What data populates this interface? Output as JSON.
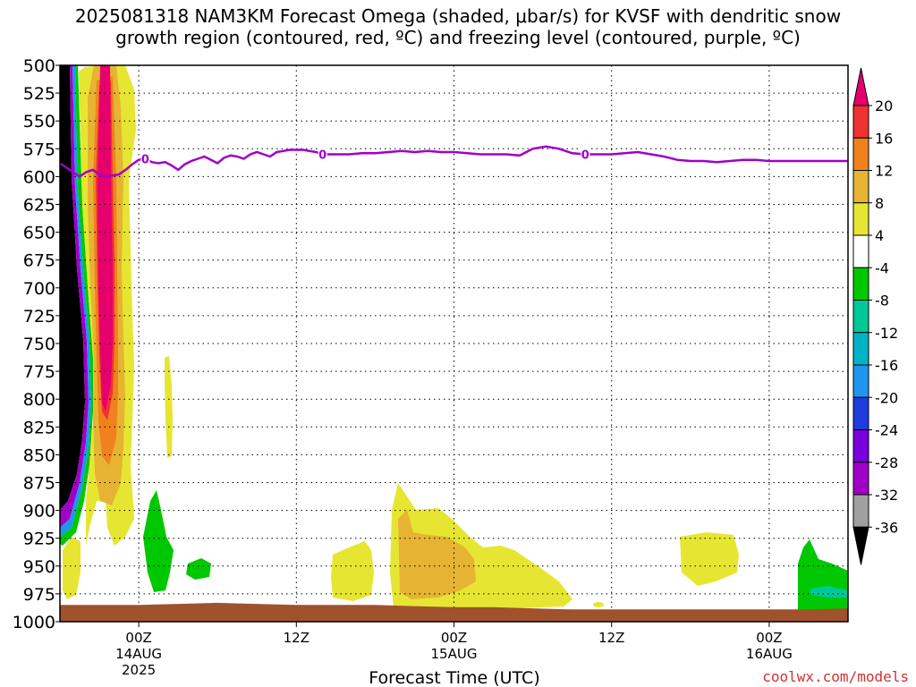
{
  "chart_data": {
    "type": "heatmap",
    "title_line1": "2025081318 NAM3KM Forecast Omega (shaded, μbar/s) for KVSF with dendritic snow",
    "title_line2": "growth region (contoured, red, ºC) and freezing level (contoured, purple, ºC)",
    "xlabel": "Forecast Time (UTC)",
    "ylabel": "",
    "x_ticks": [
      {
        "label": "00Z",
        "sub1": "14AUG",
        "sub2": "2025",
        "hour": 6
      },
      {
        "label": "12Z",
        "sub1": "",
        "sub2": "",
        "hour": 18
      },
      {
        "label": "00Z",
        "sub1": "15AUG",
        "sub2": "",
        "hour": 30
      },
      {
        "label": "12Z",
        "sub1": "",
        "sub2": "",
        "hour": 42
      },
      {
        "label": "00Z",
        "sub1": "16AUG",
        "sub2": "",
        "hour": 54
      }
    ],
    "xlim_hours": [
      0,
      60
    ],
    "y_ticks": [
      "500",
      "525",
      "550",
      "575",
      "600",
      "625",
      "650",
      "675",
      "700",
      "725",
      "750",
      "775",
      "800",
      "825",
      "850",
      "875",
      "900",
      "925",
      "950",
      "975",
      "1000"
    ],
    "ylim_hPa": [
      500,
      1000
    ],
    "grid": true,
    "colorbar": {
      "labels": [
        "20",
        "16",
        "12",
        "8",
        "4",
        "-4",
        "-8",
        "-12",
        "-16",
        "-20",
        "-24",
        "-28",
        "-32",
        "-36"
      ],
      "colors": [
        "#e6006e",
        "#f03232",
        "#f0821e",
        "#e6b432",
        "#e6e632",
        "#ffffff",
        "#00c800",
        "#00c896",
        "#00b4c8",
        "#1e96f0",
        "#1e3cdc",
        "#7800dc",
        "#a000c8",
        "#a0a0a0",
        "#000000"
      ]
    },
    "freezing_level_contour_label": "0",
    "freezing_level_hPa": [
      [
        0,
        588
      ],
      [
        1,
        596
      ],
      [
        1.5,
        600
      ],
      [
        2,
        596
      ],
      [
        2.5,
        594
      ],
      [
        3,
        598
      ],
      [
        3.5,
        600
      ],
      [
        4,
        599
      ],
      [
        4.5,
        598
      ],
      [
        5,
        594
      ],
      [
        5.5,
        589
      ],
      [
        6,
        585
      ],
      [
        6.5,
        584
      ],
      [
        7,
        587
      ],
      [
        7.5,
        588
      ],
      [
        8,
        587
      ],
      [
        8.5,
        590
      ],
      [
        9,
        594
      ],
      [
        9.5,
        589
      ],
      [
        10,
        586
      ],
      [
        10.5,
        584
      ],
      [
        11,
        582
      ],
      [
        11.5,
        585
      ],
      [
        12,
        588
      ],
      [
        12.5,
        583
      ],
      [
        13,
        581
      ],
      [
        13.5,
        582
      ],
      [
        14,
        584
      ],
      [
        14.5,
        580
      ],
      [
        15,
        578
      ],
      [
        15.5,
        580
      ],
      [
        16,
        582
      ],
      [
        16.5,
        578
      ],
      [
        17,
        577
      ],
      [
        17.5,
        576
      ],
      [
        18,
        576
      ],
      [
        18.5,
        576
      ],
      [
        19,
        577
      ],
      [
        19.5,
        578
      ],
      [
        20,
        580
      ],
      [
        21,
        580
      ],
      [
        22,
        580
      ],
      [
        23,
        579
      ],
      [
        24,
        579
      ],
      [
        25,
        578
      ],
      [
        26,
        577
      ],
      [
        27,
        578
      ],
      [
        28,
        577
      ],
      [
        29,
        578
      ],
      [
        30,
        578
      ],
      [
        31,
        579
      ],
      [
        32,
        580
      ],
      [
        33,
        580
      ],
      [
        34,
        580
      ],
      [
        35,
        581
      ],
      [
        35.5,
        578
      ],
      [
        36,
        575
      ],
      [
        37,
        573
      ],
      [
        38,
        575
      ],
      [
        39,
        579
      ],
      [
        40,
        580
      ],
      [
        41,
        580
      ],
      [
        42,
        580
      ],
      [
        43,
        579
      ],
      [
        44,
        578
      ],
      [
        45,
        580
      ],
      [
        46,
        582
      ],
      [
        47,
        585
      ],
      [
        48,
        586
      ],
      [
        49,
        586
      ],
      [
        50,
        587
      ],
      [
        51,
        586
      ],
      [
        52,
        585
      ],
      [
        53,
        585
      ],
      [
        54,
        586
      ],
      [
        55,
        586
      ],
      [
        56,
        586
      ],
      [
        57,
        586
      ],
      [
        58,
        586
      ],
      [
        59,
        586
      ],
      [
        60,
        586
      ]
    ],
    "terrain_surface_hPa": [
      [
        0,
        985
      ],
      [
        6,
        985
      ],
      [
        9,
        984
      ],
      [
        12,
        983
      ],
      [
        15,
        984
      ],
      [
        18,
        985
      ],
      [
        21,
        985
      ],
      [
        24,
        985
      ],
      [
        27,
        986
      ],
      [
        30,
        987
      ],
      [
        33,
        987
      ],
      [
        36,
        988
      ],
      [
        39,
        989
      ],
      [
        42,
        989
      ],
      [
        45,
        989
      ],
      [
        48,
        989
      ],
      [
        51,
        989
      ],
      [
        54,
        989
      ],
      [
        57,
        989
      ],
      [
        60,
        988
      ]
    ]
  },
  "watermark": "coolwx.com/models"
}
